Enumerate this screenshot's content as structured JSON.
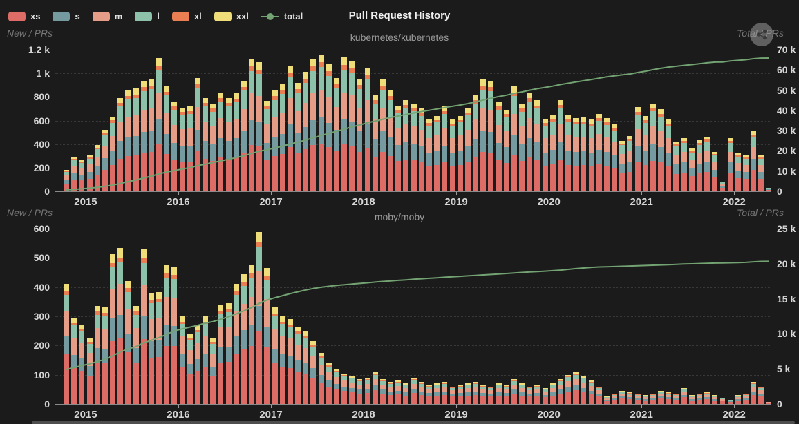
{
  "title": "Pull Request History",
  "background": "#1b1b1b",
  "accent_line_color": "#73a373",
  "legend": [
    {
      "label": "xs",
      "color": "#dd6b66",
      "marker": "rect"
    },
    {
      "label": "s",
      "color": "#759aa0",
      "marker": "rect"
    },
    {
      "label": "m",
      "color": "#e69d87",
      "marker": "rect"
    },
    {
      "label": "l",
      "color": "#8dc1a9",
      "marker": "rect"
    },
    {
      "label": "xl",
      "color": "#ea7e53",
      "marker": "rect"
    },
    {
      "label": "xxl",
      "color": "#eedd78",
      "marker": "rect"
    },
    {
      "label": "total",
      "color": "#73a373",
      "marker": "line"
    }
  ],
  "chart_data": [
    {
      "type": "bar",
      "stacked": true,
      "title": "Pull Request History",
      "subtitle": "kubernetes/kubernetes",
      "x_axis": {
        "start": "2014-10",
        "months": 92,
        "year_labels": [
          "2015",
          "2016",
          "2017",
          "2018",
          "2019",
          "2020",
          "2021",
          "2022"
        ]
      },
      "left_axis": {
        "name": "New / PRs",
        "min": 0,
        "max": 1200,
        "step": 200,
        "tick_labels": [
          "0",
          "200",
          "400",
          "600",
          "800",
          "1 k",
          "1.2 k"
        ]
      },
      "right_axis": {
        "name": "Total / PRs",
        "min": 0,
        "max": 70000,
        "step": 10000,
        "tick_labels": [
          "0",
          "10 k",
          "20 k",
          "30 k",
          "40 k",
          "50 k",
          "60 k",
          "70 k"
        ]
      },
      "series_names": [
        "xs",
        "s",
        "m",
        "l",
        "xl",
        "xxl"
      ],
      "series_shares": [
        0.35,
        0.19,
        0.2,
        0.17,
        0.035,
        0.055
      ],
      "monthly_totals": [
        180,
        290,
        265,
        305,
        390,
        520,
        635,
        790,
        855,
        870,
        935,
        950,
        1130,
        895,
        760,
        710,
        718,
        962,
        790,
        742,
        838,
        793,
        832,
        938,
        1120,
        1092,
        764,
        852,
        905,
        1065,
        918,
        1012,
        1120,
        1160,
        1075,
        962,
        1135,
        1100,
        955,
        1048,
        820,
        948,
        852,
        728,
        772,
        745,
        700,
        612,
        640,
        718,
        608,
        640,
        705,
        820,
        948,
        935,
        762,
        692,
        888,
        742,
        835,
        770,
        612,
        652,
        772,
        642,
        622,
        628,
        608,
        655,
        618,
        568,
        428,
        468,
        714,
        637,
        743,
        696,
        608,
        421,
        450,
        363,
        433,
        462,
        333,
        82,
        450,
        322,
        304,
        510,
        304,
        30
      ],
      "total_line": {
        "name": "total",
        "cumulative_base": 500,
        "end_value_approx": 65900
      }
    },
    {
      "type": "bar",
      "stacked": true,
      "subtitle": "moby/moby",
      "x_axis": {
        "start": "2014-10",
        "months": 92,
        "year_labels": [
          "2015",
          "2016",
          "2017",
          "2018",
          "2019",
          "2020",
          "2021",
          "2022"
        ]
      },
      "left_axis": {
        "name": "New / PRs",
        "min": 0,
        "max": 600,
        "step": 100,
        "tick_labels": [
          "0",
          "100",
          "200",
          "300",
          "400",
          "500",
          "600"
        ]
      },
      "right_axis": {
        "name": "Total / PRs",
        "min": 0,
        "max": 25000,
        "step": 5000,
        "tick_labels": [
          "0",
          "5 k",
          "10 k",
          "15 k",
          "20 k",
          "25 k"
        ]
      },
      "series_names": [
        "xs",
        "s",
        "m",
        "l",
        "xl",
        "xxl"
      ],
      "series_shares": [
        0.42,
        0.15,
        0.2,
        0.14,
        0.03,
        0.06
      ],
      "monthly_totals": [
        410,
        295,
        272,
        227,
        336,
        331,
        513,
        534,
        421,
        336,
        530,
        378,
        383,
        475,
        470,
        300,
        240,
        270,
        300,
        225,
        340,
        345,
        410,
        445,
        475,
        588,
        465,
        330,
        300,
        290,
        265,
        250,
        215,
        175,
        140,
        120,
        105,
        95,
        85,
        90,
        110,
        85,
        75,
        80,
        70,
        90,
        75,
        65,
        70,
        75,
        60,
        65,
        70,
        75,
        65,
        60,
        70,
        65,
        85,
        70,
        60,
        65,
        55,
        70,
        85,
        100,
        110,
        95,
        80,
        60,
        25,
        35,
        45,
        40,
        35,
        30,
        35,
        45,
        40,
        35,
        55,
        30,
        35,
        40,
        30,
        20,
        15,
        30,
        35,
        75,
        60,
        8
      ],
      "total_line": {
        "name": "total",
        "cumulative_base": 4500,
        "end_value_approx": 20300
      }
    }
  ]
}
